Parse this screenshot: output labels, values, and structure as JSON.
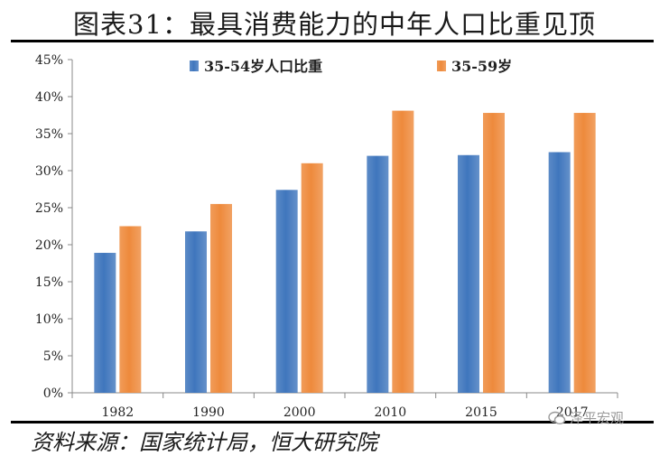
{
  "chart_data": {
    "type": "bar",
    "title": "图表31：最具消费能力的中年人口比重见顶",
    "categories": [
      "1982",
      "1990",
      "2000",
      "2010",
      "2015",
      "2017"
    ],
    "series": [
      {
        "name": "35-54岁人口比重",
        "values": [
          18.9,
          21.8,
          27.4,
          32.0,
          32.1,
          32.5
        ],
        "color": "#3f76bd"
      },
      {
        "name": "35-59岁",
        "values": [
          22.5,
          25.5,
          31.0,
          38.1,
          37.8,
          37.8
        ],
        "color": "#ee8a3c"
      }
    ],
    "ylim": [
      0,
      45
    ],
    "yticks": [
      "0%",
      "5%",
      "10%",
      "15%",
      "20%",
      "25%",
      "30%",
      "35%",
      "40%",
      "45%"
    ],
    "legend_position": "top-center",
    "grid": false
  },
  "source": "资料来源：国家统计局，恒大研究院",
  "watermark": "泽平宏观"
}
